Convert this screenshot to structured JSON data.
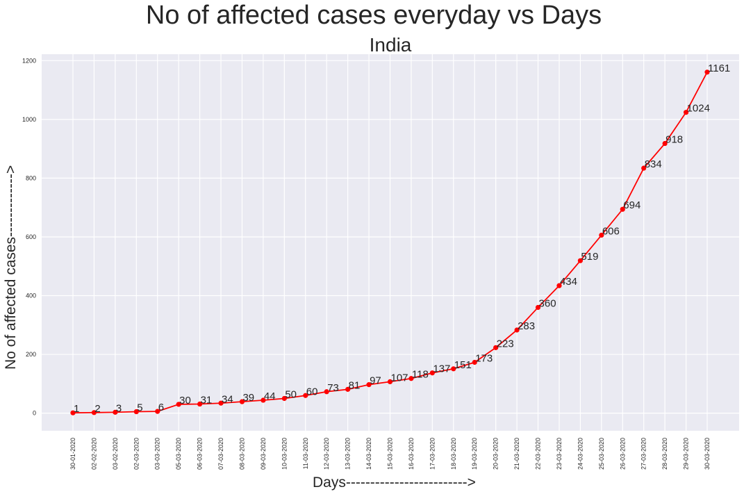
{
  "chart_data": {
    "type": "line",
    "suptitle": "No of affected cases everyday vs Days",
    "title": "India",
    "xlabel": "Days------------------------->",
    "ylabel": "No of affected cases------------->",
    "categories": [
      "30-01-2020",
      "02-02-2020",
      "03-02-2020",
      "02-03-2020",
      "03-03-2020",
      "05-03-2020",
      "06-03-2020",
      "07-03-2020",
      "08-03-2020",
      "09-03-2020",
      "10-03-2020",
      "11-03-2020",
      "12-03-2020",
      "13-03-2020",
      "14-03-2020",
      "15-03-2020",
      "16-03-2020",
      "17-03-2020",
      "18-03-2020",
      "19-03-2020",
      "20-03-2020",
      "21-03-2020",
      "22-03-2020",
      "23-03-2020",
      "24-03-2020",
      "25-03-2020",
      "26-03-2020",
      "27-03-2020",
      "28-03-2020",
      "29-03-2020",
      "30-03-2020"
    ],
    "series": [
      {
        "values": [
          1,
          2,
          3,
          5,
          6,
          30,
          31,
          34,
          39,
          44,
          50,
          60,
          73,
          81,
          97,
          107,
          118,
          137,
          151,
          173,
          223,
          283,
          360,
          434,
          519,
          606,
          694,
          834,
          918,
          1024,
          1161
        ],
        "color": "#ff0000"
      }
    ],
    "yticks": [
      0,
      200,
      400,
      600,
      800,
      1000,
      1200
    ],
    "ylim": [
      -60,
      1222
    ],
    "grid": true,
    "background": "#eaeaf2",
    "grid_color": "#ffffff"
  }
}
